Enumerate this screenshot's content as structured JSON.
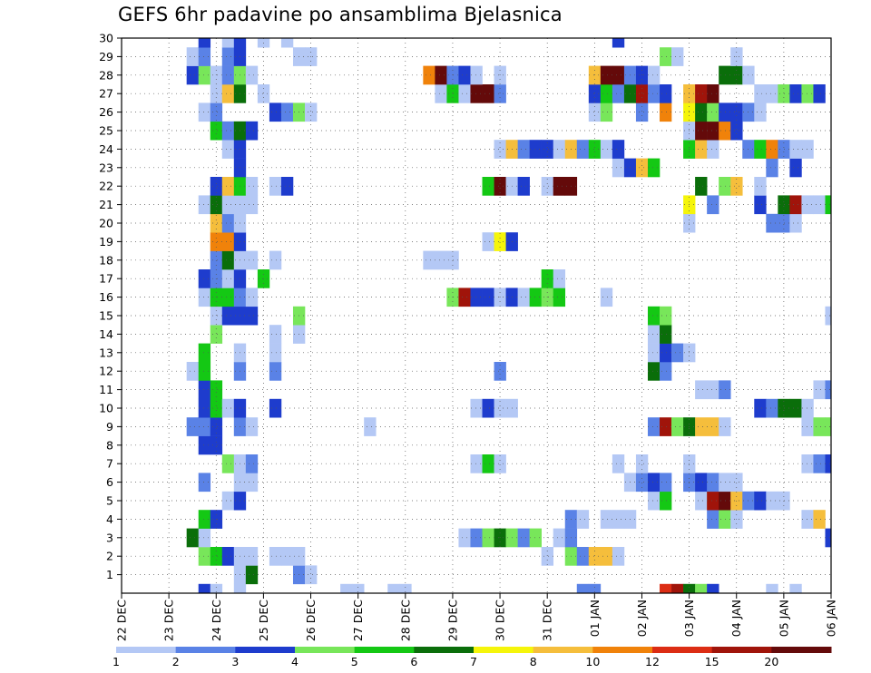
{
  "chart_data": {
    "type": "heatmap",
    "title": "GEFS 6hr padavine po ansamblima Bjelasnica",
    "xlabel": "",
    "ylabel": "",
    "x_tick_labels": [
      "22 DEC",
      "23 DEC",
      "24 DEC",
      "25 DEC",
      "26 DEC",
      "27 DEC",
      "28 DEC",
      "29 DEC",
      "30 DEC",
      "31 DEC",
      "01 JAN",
      "02 JAN",
      "03 JAN",
      "04 JAN",
      "05 JAN",
      "06 JAN"
    ],
    "y_tick_labels": [
      "1",
      "2",
      "3",
      "4",
      "5",
      "6",
      "7",
      "8",
      "9",
      "10",
      "11",
      "12",
      "13",
      "14",
      "15",
      "16",
      "17",
      "18",
      "19",
      "20",
      "21",
      "22",
      "23",
      "24",
      "25",
      "26",
      "27",
      "28",
      "29",
      "30"
    ],
    "xlim": [
      0,
      60
    ],
    "ylim": [
      0,
      30
    ],
    "colorbar": {
      "labels": [
        "1",
        "2",
        "3",
        "4",
        "5",
        "6",
        "7",
        "8",
        "10",
        "12",
        "15",
        "20"
      ],
      "colors": [
        "#b4c8f5",
        "#5a82e6",
        "#1e3ccd",
        "#78e65a",
        "#14c814",
        "#0a6e0a",
        "#f5f50a",
        "#f5be3c",
        "#f0820a",
        "#dc2d14",
        "#a0140a",
        "#640a0a"
      ]
    },
    "grid": "dotted",
    "cells": [
      [
        7,
        0,
        3
      ],
      [
        8,
        0,
        1
      ],
      [
        10,
        0,
        1
      ],
      [
        19,
        0,
        1
      ],
      [
        20,
        0,
        1
      ],
      [
        23,
        0,
        1
      ],
      [
        24,
        0,
        1
      ],
      [
        39,
        0,
        2
      ],
      [
        40,
        0,
        2
      ],
      [
        46,
        0,
        10
      ],
      [
        47,
        0,
        11
      ],
      [
        48,
        0,
        6
      ],
      [
        49,
        0,
        4
      ],
      [
        50,
        0,
        3
      ],
      [
        55,
        0,
        1
      ],
      [
        57,
        0,
        1
      ],
      [
        10,
        1,
        1
      ],
      [
        11,
        1,
        6
      ],
      [
        15,
        1,
        2
      ],
      [
        16,
        1,
        1
      ],
      [
        7,
        2,
        4
      ],
      [
        8,
        2,
        5
      ],
      [
        9,
        2,
        3
      ],
      [
        10,
        2,
        1
      ],
      [
        11,
        2,
        1
      ],
      [
        13,
        2,
        1
      ],
      [
        14,
        2,
        1
      ],
      [
        15,
        2,
        1
      ],
      [
        36,
        2,
        1
      ],
      [
        38,
        2,
        4
      ],
      [
        39,
        2,
        2
      ],
      [
        40,
        2,
        8
      ],
      [
        41,
        2,
        8
      ],
      [
        42,
        2,
        1
      ],
      [
        6,
        3,
        6
      ],
      [
        7,
        3,
        1
      ],
      [
        29,
        3,
        1
      ],
      [
        30,
        3,
        2
      ],
      [
        31,
        3,
        4
      ],
      [
        32,
        3,
        6
      ],
      [
        33,
        3,
        4
      ],
      [
        34,
        3,
        2
      ],
      [
        35,
        3,
        4
      ],
      [
        37,
        3,
        1
      ],
      [
        38,
        3,
        2
      ],
      [
        60,
        3,
        3
      ],
      [
        7,
        4,
        5
      ],
      [
        8,
        4,
        3
      ],
      [
        38,
        4,
        2
      ],
      [
        39,
        4,
        1
      ],
      [
        41,
        4,
        1
      ],
      [
        42,
        4,
        1
      ],
      [
        43,
        4,
        1
      ],
      [
        50,
        4,
        2
      ],
      [
        51,
        4,
        4
      ],
      [
        52,
        4,
        1
      ],
      [
        58,
        4,
        1
      ],
      [
        59,
        4,
        8
      ],
      [
        9,
        5,
        1
      ],
      [
        10,
        5,
        3
      ],
      [
        45,
        5,
        1
      ],
      [
        46,
        5,
        5
      ],
      [
        49,
        5,
        1
      ],
      [
        50,
        5,
        11
      ],
      [
        51,
        5,
        12
      ],
      [
        52,
        5,
        8
      ],
      [
        53,
        5,
        2
      ],
      [
        54,
        5,
        3
      ],
      [
        55,
        5,
        1
      ],
      [
        56,
        5,
        1
      ],
      [
        7,
        6,
        2
      ],
      [
        10,
        6,
        1
      ],
      [
        11,
        6,
        1
      ],
      [
        43,
        6,
        1
      ],
      [
        44,
        6,
        2
      ],
      [
        45,
        6,
        3
      ],
      [
        46,
        6,
        2
      ],
      [
        48,
        6,
        2
      ],
      [
        49,
        6,
        3
      ],
      [
        50,
        6,
        2
      ],
      [
        51,
        6,
        1
      ],
      [
        52,
        6,
        1
      ],
      [
        9,
        7,
        4
      ],
      [
        10,
        7,
        1
      ],
      [
        11,
        7,
        2
      ],
      [
        30,
        7,
        1
      ],
      [
        31,
        7,
        5
      ],
      [
        32,
        7,
        1
      ],
      [
        42,
        7,
        1
      ],
      [
        44,
        7,
        1
      ],
      [
        48,
        7,
        1
      ],
      [
        58,
        7,
        1
      ],
      [
        59,
        7,
        2
      ],
      [
        60,
        7,
        3
      ],
      [
        7,
        8,
        3
      ],
      [
        8,
        8,
        3
      ],
      [
        6,
        9,
        2
      ],
      [
        7,
        9,
        2
      ],
      [
        8,
        9,
        3
      ],
      [
        10,
        9,
        2
      ],
      [
        11,
        9,
        1
      ],
      [
        21,
        9,
        1
      ],
      [
        45,
        9,
        2
      ],
      [
        46,
        9,
        11
      ],
      [
        47,
        9,
        4
      ],
      [
        48,
        9,
        6
      ],
      [
        49,
        9,
        8
      ],
      [
        50,
        9,
        8
      ],
      [
        51,
        9,
        1
      ],
      [
        58,
        9,
        1
      ],
      [
        59,
        9,
        4
      ],
      [
        60,
        9,
        4
      ],
      [
        7,
        10,
        3
      ],
      [
        8,
        10,
        5
      ],
      [
        9,
        10,
        1
      ],
      [
        10,
        10,
        3
      ],
      [
        13,
        10,
        3
      ],
      [
        30,
        10,
        1
      ],
      [
        31,
        10,
        3
      ],
      [
        32,
        10,
        1
      ],
      [
        33,
        10,
        1
      ],
      [
        54,
        10,
        3
      ],
      [
        55,
        10,
        2
      ],
      [
        56,
        10,
        6
      ],
      [
        57,
        10,
        6
      ],
      [
        58,
        10,
        1
      ],
      [
        7,
        11,
        3
      ],
      [
        8,
        11,
        5
      ],
      [
        49,
        11,
        1
      ],
      [
        50,
        11,
        1
      ],
      [
        51,
        11,
        2
      ],
      [
        59,
        11,
        1
      ],
      [
        60,
        11,
        2
      ],
      [
        6,
        12,
        1
      ],
      [
        7,
        12,
        5
      ],
      [
        10,
        12,
        2
      ],
      [
        13,
        12,
        2
      ],
      [
        32,
        12,
        2
      ],
      [
        45,
        12,
        6
      ],
      [
        46,
        12,
        2
      ],
      [
        7,
        13,
        5
      ],
      [
        10,
        13,
        1
      ],
      [
        13,
        13,
        1
      ],
      [
        45,
        13,
        1
      ],
      [
        46,
        13,
        3
      ],
      [
        47,
        13,
        2
      ],
      [
        48,
        13,
        1
      ],
      [
        8,
        14,
        4
      ],
      [
        13,
        14,
        1
      ],
      [
        15,
        14,
        1
      ],
      [
        45,
        14,
        1
      ],
      [
        46,
        14,
        6
      ],
      [
        8,
        15,
        1
      ],
      [
        9,
        15,
        3
      ],
      [
        10,
        15,
        3
      ],
      [
        11,
        15,
        3
      ],
      [
        15,
        15,
        4
      ],
      [
        45,
        15,
        5
      ],
      [
        46,
        15,
        4
      ],
      [
        60,
        15,
        1
      ],
      [
        7,
        16,
        1
      ],
      [
        8,
        16,
        5
      ],
      [
        9,
        16,
        5
      ],
      [
        10,
        16,
        2
      ],
      [
        11,
        16,
        1
      ],
      [
        28,
        16,
        4
      ],
      [
        29,
        16,
        11
      ],
      [
        30,
        16,
        3
      ],
      [
        31,
        16,
        3
      ],
      [
        32,
        16,
        1
      ],
      [
        33,
        16,
        3
      ],
      [
        34,
        16,
        1
      ],
      [
        35,
        16,
        5
      ],
      [
        36,
        16,
        4
      ],
      [
        37,
        16,
        5
      ],
      [
        41,
        16,
        1
      ],
      [
        7,
        17,
        3
      ],
      [
        8,
        17,
        2
      ],
      [
        9,
        17,
        1
      ],
      [
        10,
        17,
        3
      ],
      [
        12,
        17,
        5
      ],
      [
        36,
        17,
        5
      ],
      [
        37,
        17,
        1
      ],
      [
        8,
        18,
        2
      ],
      [
        9,
        18,
        6
      ],
      [
        10,
        18,
        1
      ],
      [
        11,
        18,
        1
      ],
      [
        13,
        18,
        1
      ],
      [
        26,
        18,
        1
      ],
      [
        27,
        18,
        1
      ],
      [
        28,
        18,
        1
      ],
      [
        8,
        19,
        9
      ],
      [
        9,
        19,
        9
      ],
      [
        10,
        19,
        3
      ],
      [
        31,
        19,
        1
      ],
      [
        32,
        19,
        7
      ],
      [
        33,
        19,
        3
      ],
      [
        8,
        20,
        8
      ],
      [
        9,
        20,
        2
      ],
      [
        10,
        20,
        1
      ],
      [
        48,
        20,
        1
      ],
      [
        55,
        20,
        2
      ],
      [
        56,
        20,
        2
      ],
      [
        57,
        20,
        1
      ],
      [
        7,
        21,
        1
      ],
      [
        8,
        21,
        6
      ],
      [
        9,
        21,
        1
      ],
      [
        10,
        21,
        1
      ],
      [
        11,
        21,
        1
      ],
      [
        48,
        21,
        7
      ],
      [
        50,
        21,
        2
      ],
      [
        54,
        21,
        3
      ],
      [
        56,
        21,
        6
      ],
      [
        57,
        21,
        11
      ],
      [
        58,
        21,
        1
      ],
      [
        59,
        21,
        1
      ],
      [
        60,
        21,
        5
      ],
      [
        8,
        22,
        3
      ],
      [
        9,
        22,
        8
      ],
      [
        10,
        22,
        5
      ],
      [
        11,
        22,
        1
      ],
      [
        13,
        22,
        1
      ],
      [
        14,
        22,
        3
      ],
      [
        31,
        22,
        5
      ],
      [
        32,
        22,
        12
      ],
      [
        33,
        22,
        1
      ],
      [
        34,
        22,
        3
      ],
      [
        36,
        22,
        1
      ],
      [
        37,
        22,
        12
      ],
      [
        38,
        22,
        12
      ],
      [
        49,
        22,
        6
      ],
      [
        51,
        22,
        4
      ],
      [
        52,
        22,
        8
      ],
      [
        54,
        22,
        1
      ],
      [
        10,
        23,
        3
      ],
      [
        42,
        23,
        1
      ],
      [
        43,
        23,
        3
      ],
      [
        44,
        23,
        8
      ],
      [
        45,
        23,
        5
      ],
      [
        55,
        23,
        2
      ],
      [
        57,
        23,
        3
      ],
      [
        9,
        24,
        1
      ],
      [
        10,
        24,
        3
      ],
      [
        32,
        24,
        1
      ],
      [
        33,
        24,
        8
      ],
      [
        34,
        24,
        2
      ],
      [
        35,
        24,
        3
      ],
      [
        36,
        24,
        3
      ],
      [
        37,
        24,
        1
      ],
      [
        38,
        24,
        8
      ],
      [
        39,
        24,
        2
      ],
      [
        40,
        24,
        5
      ],
      [
        41,
        24,
        1
      ],
      [
        42,
        24,
        3
      ],
      [
        48,
        24,
        5
      ],
      [
        49,
        24,
        8
      ],
      [
        50,
        24,
        1
      ],
      [
        53,
        24,
        2
      ],
      [
        54,
        24,
        5
      ],
      [
        55,
        24,
        9
      ],
      [
        56,
        24,
        2
      ],
      [
        57,
        24,
        1
      ],
      [
        58,
        24,
        1
      ],
      [
        8,
        25,
        5
      ],
      [
        9,
        25,
        2
      ],
      [
        10,
        25,
        6
      ],
      [
        11,
        25,
        3
      ],
      [
        48,
        25,
        1
      ],
      [
        49,
        25,
        12
      ],
      [
        50,
        25,
        12
      ],
      [
        51,
        25,
        9
      ],
      [
        52,
        25,
        3
      ],
      [
        7,
        26,
        1
      ],
      [
        8,
        26,
        2
      ],
      [
        13,
        26,
        3
      ],
      [
        14,
        26,
        2
      ],
      [
        15,
        26,
        4
      ],
      [
        16,
        26,
        1
      ],
      [
        40,
        26,
        1
      ],
      [
        41,
        26,
        4
      ],
      [
        44,
        26,
        2
      ],
      [
        46,
        26,
        9
      ],
      [
        48,
        26,
        7
      ],
      [
        49,
        26,
        6
      ],
      [
        50,
        26,
        4
      ],
      [
        51,
        26,
        3
      ],
      [
        52,
        26,
        3
      ],
      [
        53,
        26,
        2
      ],
      [
        54,
        26,
        1
      ],
      [
        8,
        27,
        1
      ],
      [
        9,
        27,
        8
      ],
      [
        10,
        27,
        6
      ],
      [
        12,
        27,
        1
      ],
      [
        27,
        27,
        1
      ],
      [
        28,
        27,
        5
      ],
      [
        29,
        27,
        1
      ],
      [
        30,
        27,
        12
      ],
      [
        31,
        27,
        12
      ],
      [
        32,
        27,
        2
      ],
      [
        40,
        27,
        3
      ],
      [
        41,
        27,
        5
      ],
      [
        42,
        27,
        2
      ],
      [
        43,
        27,
        6
      ],
      [
        44,
        27,
        11
      ],
      [
        45,
        27,
        2
      ],
      [
        46,
        27,
        3
      ],
      [
        48,
        27,
        8
      ],
      [
        49,
        27,
        11
      ],
      [
        50,
        27,
        12
      ],
      [
        54,
        27,
        1
      ],
      [
        55,
        27,
        1
      ],
      [
        56,
        27,
        4
      ],
      [
        57,
        27,
        3
      ],
      [
        58,
        27,
        4
      ],
      [
        59,
        27,
        3
      ],
      [
        6,
        28,
        3
      ],
      [
        7,
        28,
        4
      ],
      [
        8,
        28,
        1
      ],
      [
        9,
        28,
        2
      ],
      [
        10,
        28,
        4
      ],
      [
        11,
        28,
        1
      ],
      [
        26,
        28,
        9
      ],
      [
        27,
        28,
        12
      ],
      [
        28,
        28,
        2
      ],
      [
        29,
        28,
        3
      ],
      [
        30,
        28,
        1
      ],
      [
        32,
        28,
        1
      ],
      [
        40,
        28,
        8
      ],
      [
        41,
        28,
        12
      ],
      [
        42,
        28,
        12
      ],
      [
        43,
        28,
        2
      ],
      [
        44,
        28,
        3
      ],
      [
        45,
        28,
        1
      ],
      [
        51,
        28,
        6
      ],
      [
        52,
        28,
        6
      ],
      [
        53,
        28,
        1
      ],
      [
        6,
        29,
        1
      ],
      [
        7,
        29,
        2
      ],
      [
        9,
        29,
        2
      ],
      [
        10,
        29,
        3
      ],
      [
        15,
        29,
        1
      ],
      [
        16,
        29,
        1
      ],
      [
        46,
        29,
        4
      ],
      [
        47,
        29,
        1
      ],
      [
        52,
        29,
        1
      ],
      [
        7,
        30,
        3
      ],
      [
        9,
        30,
        1
      ],
      [
        10,
        30,
        3
      ],
      [
        12,
        30,
        1
      ],
      [
        14,
        30,
        1
      ],
      [
        42,
        30,
        3
      ]
    ]
  }
}
